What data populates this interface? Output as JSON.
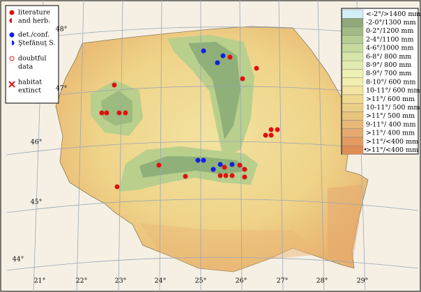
{
  "legend": {
    "items": [
      {
        "lines": [
          "literature",
          "and herb."
        ]
      },
      {
        "lines": [
          "det./conf.",
          "Ştefănuţ S."
        ]
      },
      {
        "lines": [
          "doubtful",
          "data"
        ]
      },
      {
        "lines": [
          "habitat",
          "extinct"
        ]
      }
    ]
  },
  "climate_legend": [
    "<-2°/>1400 mm",
    "-2-0°/1300 mm",
    "0-2°/1200 mm",
    "2-4°/1100 mm",
    "4-6°/1000 mm",
    "6-8°/ 800 mm",
    "8-9°/ 800 mm",
    "8-9°/ 700 mm",
    "8-10°/ 600 mm",
    "10-11°/ 600 mm",
    ">11°/ 600 mm",
    "10-11°/ 500 mm",
    ">11°/ 500 mm",
    "9-11°/ 400 mm",
    ">11°/ 400 mm",
    ">11°/<400 mm",
    ">11°/<400 mm"
  ],
  "longitude_labels": [
    "21°",
    "22°",
    "23°",
    "24°",
    "25°",
    "26°",
    "27°",
    "28°",
    "29°"
  ],
  "latitude_labels": [
    "48°",
    "47°",
    "46°",
    "45°",
    "44°"
  ]
}
